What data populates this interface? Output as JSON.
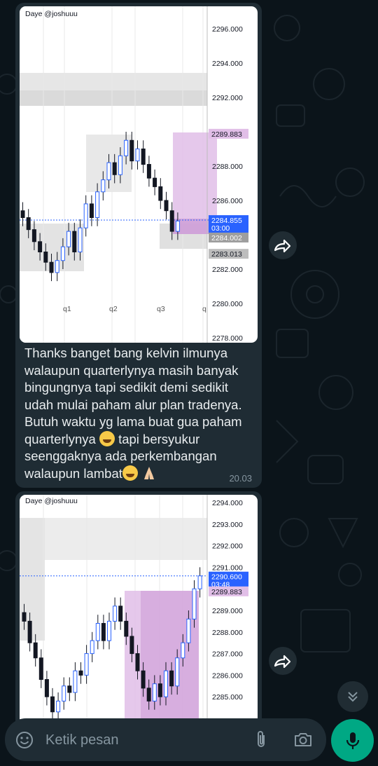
{
  "messages": [
    {
      "watermark": "Daye @joshuuu",
      "price_axis": [
        "2296.000",
        "2294.000",
        "2292.000",
        "2289.883",
        "2288.000",
        "2286.000",
        "2284.855",
        "03:00",
        "2284.002",
        "2283.013",
        "2282.000",
        "2280.000",
        "2278.000"
      ],
      "x_labels": [
        "q1",
        "q2",
        "q3",
        "q"
      ],
      "text_lines": [
        "Thanks banget bang kelvin ilmunya",
        "walaupun quarterlynya masih banyak",
        "bingungnya tapi sedikit demi sedikit",
        "udah mulai paham alur plan tradenya.",
        "Butuh waktu yg lama buat gua paham",
        "quarterlynya",
        "tapi bersyukur",
        "seenggaknya ada perkembangan",
        "walaupun lambat"
      ],
      "time": "20.03"
    },
    {
      "watermark": "Daye @joshuuu",
      "price_axis": [
        "2294.000",
        "2293.000",
        "2292.000",
        "2291.000",
        "2290.600",
        "03:48",
        "2289.883",
        "2289.000",
        "2288.000",
        "2287.000",
        "2286.000",
        "2285.000"
      ]
    }
  ],
  "composer": {
    "placeholder": "Ketik pesan"
  },
  "icons": {
    "emoji": "emoji-icon",
    "attach": "paperclip-icon",
    "camera": "camera-icon",
    "mic": "microphone-icon",
    "forward": "forward-icon",
    "scroll": "chevron-double-down-icon"
  },
  "colors": {
    "accent": "#00a884",
    "bubble": "#1f2c34",
    "background": "#0b141a",
    "last_price": "#2962ff",
    "zone": "#e1bee7"
  }
}
